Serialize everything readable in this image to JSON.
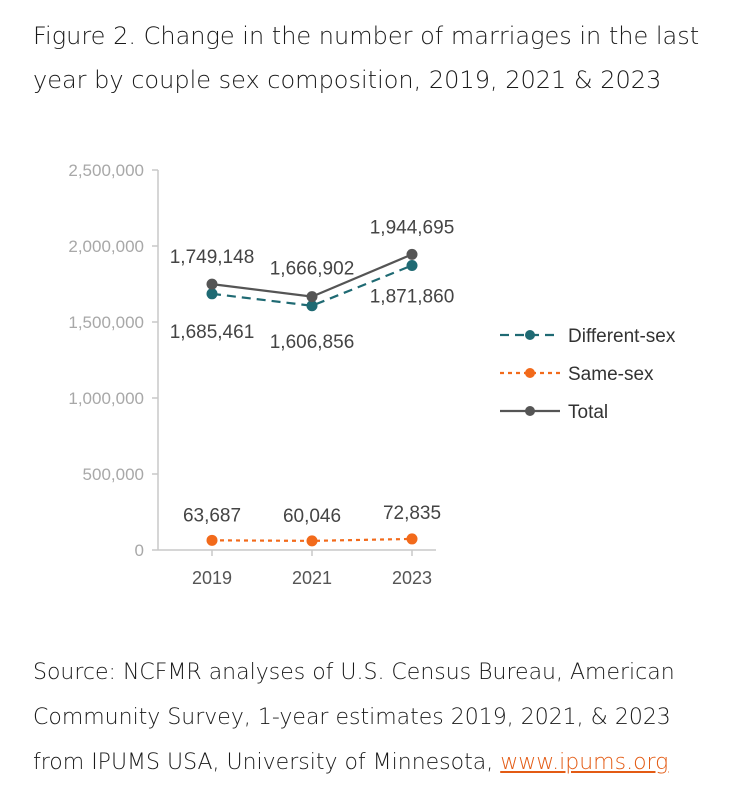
{
  "title_line1": "Figure 2. Change in the number of marriages in the last",
  "title_line2": "year by couple sex composition, 2019, 2021 & 2023",
  "source_line1": "Source: NCFMR analyses of U.S. Census Bureau, American",
  "source_line2": "Community Survey, 1-year estimates 2019, 2021, & 2023",
  "source_line3": "from IPUMS USA, University of Minnesota, ",
  "source_link": "www.ipums.org",
  "chart_data": {
    "type": "line",
    "title": "Figure 2. Change in the number of marriages in the last year by couple sex composition, 2019, 2021 & 2023",
    "xlabel": "",
    "ylabel": "",
    "categories": [
      "2019",
      "2021",
      "2023"
    ],
    "ylim": [
      0,
      2500000
    ],
    "yticks": [
      0,
      500000,
      1000000,
      1500000,
      2000000,
      2500000
    ],
    "ytick_labels": [
      "0",
      "500,000",
      "1,000,000",
      "1,500,000",
      "2,000,000",
      "2,500,000"
    ],
    "grid": false,
    "legend_position": "right",
    "series": [
      {
        "name": "Different-sex",
        "values": [
          1685461,
          1606856,
          1871860
        ],
        "labels": [
          "1,685,461",
          "1,606,856",
          "1,871,860"
        ],
        "color": "#1f6a73",
        "dash": "dashed"
      },
      {
        "name": "Same-sex",
        "values": [
          63687,
          60046,
          72835
        ],
        "labels": [
          "63,687",
          "60,046",
          "72,835"
        ],
        "color": "#f26a1b",
        "dash": "dotted"
      },
      {
        "name": "Total",
        "values": [
          1749148,
          1666902,
          1944695
        ],
        "labels": [
          "1,749,148",
          "1,666,902",
          "1,944,695"
        ],
        "color": "#555555",
        "dash": "solid"
      }
    ]
  }
}
